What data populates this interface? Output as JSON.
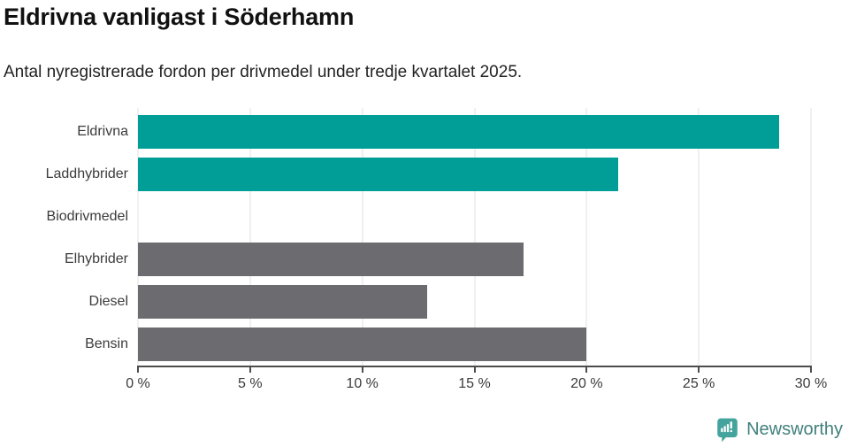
{
  "header": {
    "title": "Eldrivna vanligast i Söderhamn",
    "subtitle": "Antal nyregistrerade fordon per drivmedel under tredje kvartalet 2025."
  },
  "chart_data": {
    "type": "bar",
    "orientation": "horizontal",
    "title": "Eldrivna vanligast i Söderhamn",
    "subtitle": "Antal nyregistrerade fordon per drivmedel under tredje kvartalet 2025.",
    "categories": [
      "Eldrivna",
      "Laddhybrider",
      "Biodrivmedel",
      "Elhybrider",
      "Diesel",
      "Bensin"
    ],
    "values": [
      28.6,
      21.4,
      0,
      17.2,
      12.9,
      20.0
    ],
    "bar_colors": [
      "#009E96",
      "#009E96",
      "#6C6C70",
      "#6C6C70",
      "#6C6C70",
      "#6C6C70"
    ],
    "xlabel": "",
    "ylabel": "",
    "xlim": [
      0,
      30
    ],
    "xticks": [
      0,
      5,
      10,
      15,
      20,
      25,
      30
    ],
    "xtick_labels": [
      "0 %",
      "5 %",
      "10 %",
      "15 %",
      "20 %",
      "25 %",
      "30 %"
    ],
    "grid": true,
    "legend": false
  },
  "footer": {
    "brand": "Newsworthy",
    "logo_icon": "bar-chart-speech-bubble-icon"
  },
  "colors": {
    "highlight_teal": "#009E96",
    "neutral_gray": "#6C6C70",
    "gridline": "#E2E2E2",
    "axis": "#4D4D4D",
    "title_text": "#111111",
    "label_text": "#3B3B3B",
    "brand_icon": "#44A39D",
    "brand_text": "#41807C"
  }
}
